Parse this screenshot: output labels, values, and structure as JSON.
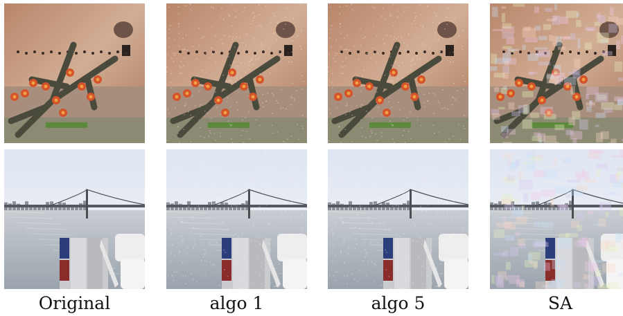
{
  "columns": [
    {
      "label": "Original",
      "variant": "clean"
    },
    {
      "label": "algo 1",
      "variant": "light-noise"
    },
    {
      "label": "algo 5",
      "variant": "light-noise"
    },
    {
      "label": "SA",
      "variant": "heavy-artifacts"
    }
  ],
  "rows": [
    {
      "scene": "cactus-flowers-against-rock-wall"
    },
    {
      "scene": "bay-bridge-with-shipping-containers"
    }
  ],
  "colors": {
    "rock": "#b8866a",
    "rock_light": "#d2ae95",
    "cactus": "#4a4a3c",
    "flower": "#d5532a",
    "sky": "#e8ecf4",
    "water": "#9aa3ac",
    "container_blue": "#2b3d7a",
    "container_red": "#8a2c2a"
  }
}
